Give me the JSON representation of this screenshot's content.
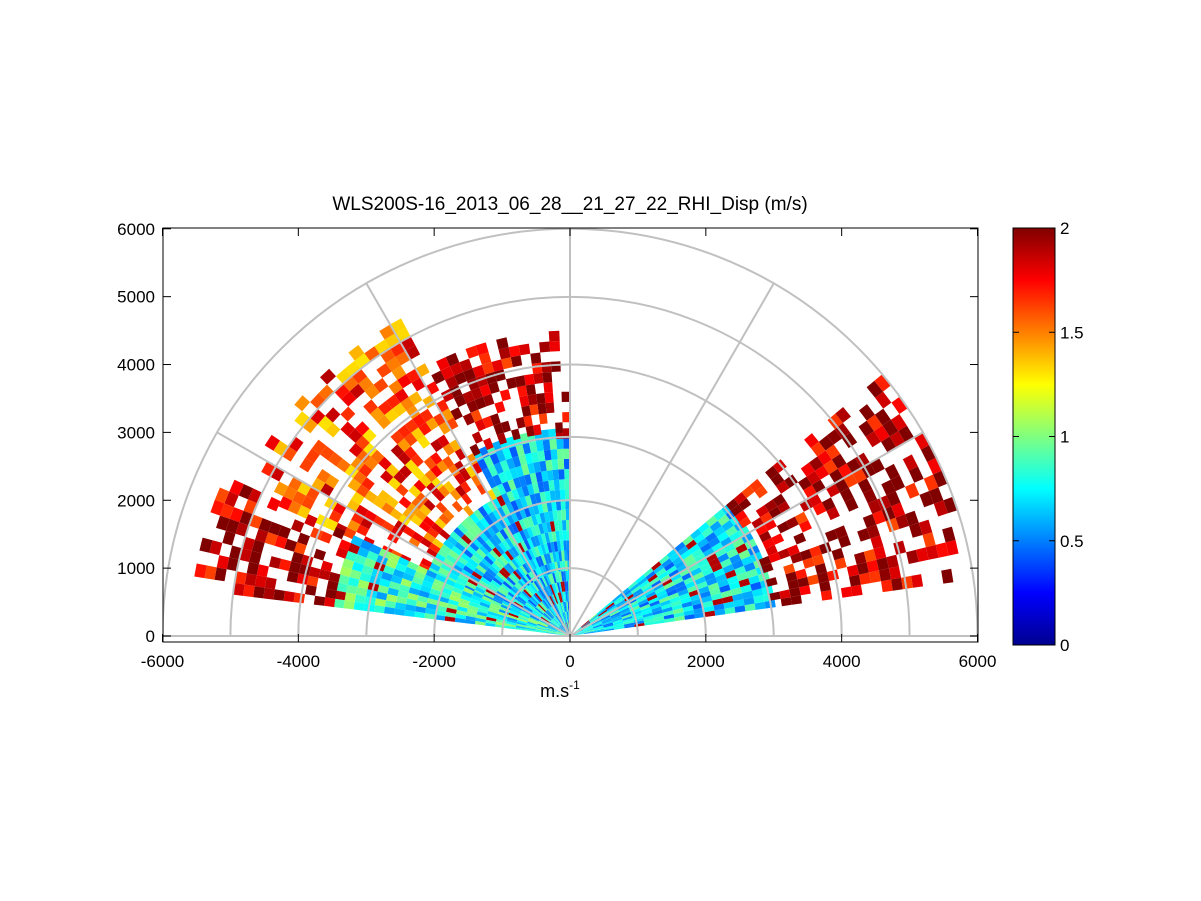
{
  "figure": {
    "title": "WLS200S-16_2013_06_28__21_27_22_RHI_Disp (m/s)",
    "xlabel_base": "m.s",
    "xlabel_exp": "-1"
  },
  "chart_data": {
    "type": "heatmap",
    "subtype": "polar-rhi",
    "title": "WLS200S-16_2013_06_28__21_27_22_RHI_Disp (m/s)",
    "xlabel": "m.s-1",
    "ylabel": "",
    "xlim": [
      -6000,
      6000
    ],
    "ylim": [
      -100,
      6000
    ],
    "xticks": [
      -6000,
      -4000,
      -2000,
      0,
      2000,
      4000,
      6000
    ],
    "yticks": [
      0,
      1000,
      2000,
      3000,
      4000,
      5000,
      6000
    ],
    "colorbar": {
      "colormap": "jet",
      "range": [
        0,
        2
      ],
      "ticks": [
        0,
        0.5,
        1,
        1.5,
        2
      ]
    },
    "polar_grid": {
      "range_rings": [
        1000,
        2000,
        3000,
        4000,
        5000,
        6000
      ],
      "spokes_deg": [
        0,
        30,
        60,
        90,
        120,
        150,
        180
      ]
    },
    "sectors": [
      {
        "az_from_deg": 8,
        "az_to_deg": 40,
        "r_from": 0,
        "r_to": 3000,
        "typical_value": 0.7
      },
      {
        "az_from_deg": 8,
        "az_to_deg": 40,
        "r_from": 3000,
        "r_to": 6000,
        "typical_value": 1.9
      },
      {
        "az_from_deg": 90,
        "az_to_deg": 118,
        "r_from": 0,
        "r_to": 3000,
        "typical_value": 0.7
      },
      {
        "az_from_deg": 90,
        "az_to_deg": 118,
        "r_from": 3000,
        "r_to": 4500,
        "typical_value": 1.9
      },
      {
        "az_from_deg": 118,
        "az_to_deg": 155,
        "r_from": 0,
        "r_to": 2300,
        "typical_value": 0.7
      },
      {
        "az_from_deg": 118,
        "az_to_deg": 155,
        "r_from": 2300,
        "r_to": 5200,
        "typical_value": 1.6
      },
      {
        "az_from_deg": 155,
        "az_to_deg": 172,
        "r_from": 0,
        "r_to": 3500,
        "typical_value": 0.8
      },
      {
        "az_from_deg": 155,
        "az_to_deg": 172,
        "r_from": 3500,
        "r_to": 5500,
        "typical_value": 1.9
      }
    ],
    "grid": false
  }
}
